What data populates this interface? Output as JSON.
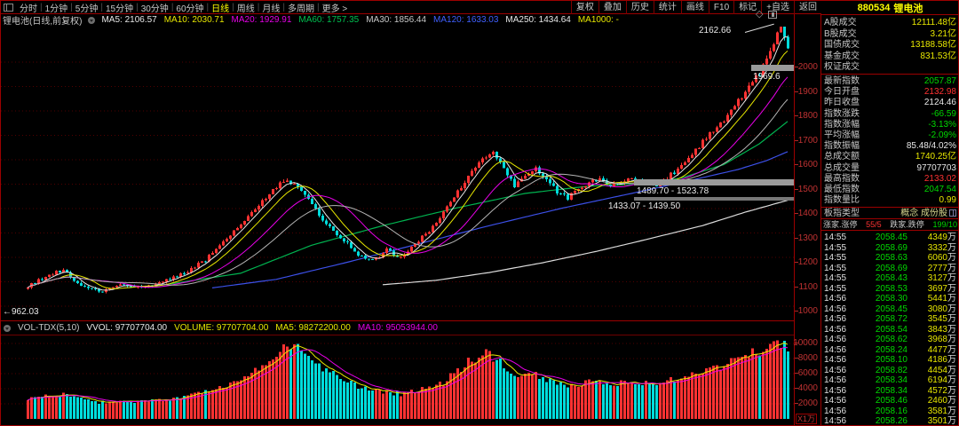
{
  "window": {
    "code": "880534",
    "name": "锂电池"
  },
  "toolbar": {
    "periods": [
      "分时",
      "1分钟",
      "5分钟",
      "15分钟",
      "30分钟",
      "60分钟",
      "日线",
      "周线",
      "月线",
      "多周期",
      "更多 >"
    ],
    "active_index": 6,
    "right_buttons": [
      "复权",
      "叠加",
      "历史",
      "统计",
      "画线",
      "F10",
      "标记",
      "+自选",
      "返回"
    ]
  },
  "ma_header": {
    "instrument": "锂电池(日线,前复权)",
    "items": [
      {
        "text": "MA5: 2106.57",
        "color": "#e8e8e8"
      },
      {
        "text": "MA10: 2030.71",
        "color": "#e8e800"
      },
      {
        "text": "MA20: 1929.91",
        "color": "#e800e8"
      },
      {
        "text": "MA60: 1757.35",
        "color": "#00c050"
      },
      {
        "text": "MA30: 1856.44",
        "color": "#c8c8c8"
      },
      {
        "text": "MA120: 1633.03",
        "color": "#4060ff"
      },
      {
        "text": "MA250: 1434.64",
        "color": "#e8e8e8"
      },
      {
        "text": "MA1000: -",
        "color": "#e8e800"
      }
    ]
  },
  "annotations": {
    "high": "2162.66",
    "zone_top": "1969.6",
    "zone_mid": "1489.70 - 1523.78",
    "zone_low": "1433.07 - 1439.50",
    "left_low": "←962.03"
  },
  "price_axis": {
    "ticks": [
      2000,
      1900,
      1800,
      1700,
      1600,
      1500,
      1400,
      1300,
      1200,
      1100,
      1000
    ]
  },
  "volume_axis": {
    "ticks": [
      10000,
      8000,
      6000,
      4000,
      2000
    ],
    "unit": "X1万"
  },
  "volume_header": {
    "items": [
      {
        "text": "VOL-TDX(5,10)",
        "color": "#c8c8c8"
      },
      {
        "text": "VVOL: 97707704.00",
        "color": "#e8e8e8"
      },
      {
        "text": "VOLUME: 97707704.00",
        "color": "#e8e800"
      },
      {
        "text": "MA5: 98272200.00",
        "color": "#e8e800"
      },
      {
        "text": "MA10: 95053944.00",
        "color": "#e800e8"
      }
    ]
  },
  "right_panel": {
    "summary_rows": [
      {
        "label": "A股成交",
        "value": "12111.48亿",
        "color": "#e8e800"
      },
      {
        "label": "B股成交",
        "value": "3.21亿",
        "color": "#e8e800"
      },
      {
        "label": "国债成交",
        "value": "13188.58亿",
        "color": "#e8e800"
      },
      {
        "label": "基金成交",
        "value": "831.53亿",
        "color": "#e8e800"
      },
      {
        "label": "权证成交",
        "value": "",
        "color": "#e8e800"
      }
    ],
    "index_rows": [
      {
        "label": "最新指数",
        "value": "2057.87",
        "color": "#00d800"
      },
      {
        "label": "今日开盘",
        "value": "2132.98",
        "color": "#ff3232"
      },
      {
        "label": "昨日收盘",
        "value": "2124.46",
        "color": "#e8e8e8"
      },
      {
        "label": "指数涨跌",
        "value": "-66.59",
        "color": "#00d800"
      },
      {
        "label": "指数涨幅",
        "value": "-3.13%",
        "color": "#00d800"
      },
      {
        "label": "平均涨幅",
        "value": "-2.09%",
        "color": "#00d800"
      },
      {
        "label": "指数振幅",
        "value": "85.48/4.02%",
        "color": "#e8e8e8"
      },
      {
        "label": "总成交额",
        "value": "1740.25亿",
        "color": "#e8e800"
      },
      {
        "label": "总成交量",
        "value": "97707703",
        "color": "#e8e8e8"
      },
      {
        "label": "最高指数",
        "value": "2133.02",
        "color": "#ff3232"
      },
      {
        "label": "最低指数",
        "value": "2047.54",
        "color": "#00d800"
      },
      {
        "label": "指数量比",
        "value": "0.99",
        "color": "#e8e800"
      }
    ],
    "type_row": {
      "label": "板指类型",
      "value": "概念 成份股"
    },
    "breadth_row": {
      "label_up": "涨家.涨停",
      "value_up": "55/5",
      "label_down": "跌家.跌停",
      "value_down": "199/10"
    },
    "tick_unit": "万",
    "ticks": [
      {
        "time": "14:55",
        "price": "2058.45",
        "vol": "4349"
      },
      {
        "time": "14:55",
        "price": "2058.69",
        "vol": "3332"
      },
      {
        "time": "14:55",
        "price": "2058.63",
        "vol": "6060"
      },
      {
        "time": "14:55",
        "price": "2058.69",
        "vol": "2777"
      },
      {
        "time": "14:55",
        "price": "2058.43",
        "vol": "3127"
      },
      {
        "time": "14:55",
        "price": "2058.53",
        "vol": "3697"
      },
      {
        "time": "14:56",
        "price": "2058.30",
        "vol": "5441"
      },
      {
        "time": "14:56",
        "price": "2058.45",
        "vol": "3080"
      },
      {
        "time": "14:56",
        "price": "2058.72",
        "vol": "3545"
      },
      {
        "time": "14:56",
        "price": "2058.54",
        "vol": "3843"
      },
      {
        "time": "14:56",
        "price": "2058.62",
        "vol": "3968"
      },
      {
        "time": "14:56",
        "price": "2058.24",
        "vol": "4477"
      },
      {
        "time": "14:56",
        "price": "2058.10",
        "vol": "4186"
      },
      {
        "time": "14:56",
        "price": "2058.82",
        "vol": "4454"
      },
      {
        "time": "14:56",
        "price": "2058.34",
        "vol": "6194"
      },
      {
        "time": "14:56",
        "price": "2058.34",
        "vol": "4572"
      },
      {
        "time": "14:56",
        "price": "2058.46",
        "vol": "2460"
      },
      {
        "time": "14:56",
        "price": "2058.16",
        "vol": "3581"
      },
      {
        "time": "14:56",
        "price": "2058.26",
        "vol": "3501"
      }
    ]
  },
  "chart_data": {
    "type": "candlestick+volume",
    "bars": 215,
    "price_range_visible": [
      949,
      2150
    ],
    "volume_unit_wan": true,
    "close_anchors": [
      [
        0,
        1080
      ],
      [
        6,
        1130
      ],
      [
        10,
        1150
      ],
      [
        14,
        1095
      ],
      [
        20,
        1060
      ],
      [
        26,
        1085
      ],
      [
        32,
        1075
      ],
      [
        38,
        1100
      ],
      [
        44,
        1135
      ],
      [
        50,
        1190
      ],
      [
        56,
        1280
      ],
      [
        62,
        1370
      ],
      [
        68,
        1460
      ],
      [
        72,
        1515
      ],
      [
        75,
        1500
      ],
      [
        78,
        1455
      ],
      [
        81,
        1395
      ],
      [
        85,
        1320
      ],
      [
        89,
        1270
      ],
      [
        93,
        1210
      ],
      [
        97,
        1185
      ],
      [
        101,
        1230
      ],
      [
        105,
        1195
      ],
      [
        109,
        1255
      ],
      [
        113,
        1310
      ],
      [
        117,
        1380
      ],
      [
        121,
        1470
      ],
      [
        125,
        1545
      ],
      [
        129,
        1615
      ],
      [
        131,
        1630
      ],
      [
        134,
        1565
      ],
      [
        137,
        1495
      ],
      [
        140,
        1540
      ],
      [
        143,
        1560
      ],
      [
        146,
        1525
      ],
      [
        149,
        1470
      ],
      [
        152,
        1445
      ],
      [
        155,
        1480
      ],
      [
        158,
        1510
      ],
      [
        161,
        1520
      ],
      [
        164,
        1490
      ],
      [
        167,
        1505
      ],
      [
        170,
        1525
      ],
      [
        173,
        1510
      ],
      [
        176,
        1490
      ],
      [
        179,
        1515
      ],
      [
        182,
        1550
      ],
      [
        185,
        1590
      ],
      [
        188,
        1640
      ],
      [
        191,
        1690
      ],
      [
        194,
        1730
      ],
      [
        197,
        1775
      ],
      [
        200,
        1840
      ],
      [
        203,
        1900
      ],
      [
        206,
        1955
      ],
      [
        208,
        2010
      ],
      [
        210,
        2070
      ],
      [
        212,
        2155
      ],
      [
        213,
        2100
      ],
      [
        214,
        2058
      ]
    ],
    "volume_anchors": [
      [
        0,
        2600
      ],
      [
        6,
        3100
      ],
      [
        10,
        3300
      ],
      [
        14,
        2700
      ],
      [
        20,
        2200
      ],
      [
        26,
        2400
      ],
      [
        32,
        2300
      ],
      [
        38,
        2500
      ],
      [
        44,
        2900
      ],
      [
        50,
        3600
      ],
      [
        56,
        4600
      ],
      [
        62,
        5800
      ],
      [
        68,
        7600
      ],
      [
        72,
        9400
      ],
      [
        75,
        9700
      ],
      [
        78,
        8900
      ],
      [
        81,
        7600
      ],
      [
        85,
        6200
      ],
      [
        89,
        5200
      ],
      [
        93,
        4300
      ],
      [
        97,
        3800
      ],
      [
        101,
        3500
      ],
      [
        105,
        3300
      ],
      [
        109,
        3700
      ],
      [
        113,
        4100
      ],
      [
        117,
        4800
      ],
      [
        121,
        6400
      ],
      [
        125,
        7900
      ],
      [
        129,
        8600
      ],
      [
        131,
        8300
      ],
      [
        134,
        7200
      ],
      [
        137,
        5900
      ],
      [
        140,
        6300
      ],
      [
        143,
        5900
      ],
      [
        146,
        5300
      ],
      [
        149,
        4700
      ],
      [
        152,
        4300
      ],
      [
        155,
        4600
      ],
      [
        158,
        4900
      ],
      [
        161,
        5000
      ],
      [
        164,
        4500
      ],
      [
        167,
        4700
      ],
      [
        170,
        5100
      ],
      [
        173,
        4800
      ],
      [
        176,
        4500
      ],
      [
        179,
        4900
      ],
      [
        182,
        5400
      ],
      [
        185,
        5900
      ],
      [
        188,
        6300
      ],
      [
        191,
        6700
      ],
      [
        194,
        7000
      ],
      [
        197,
        7400
      ],
      [
        200,
        8000
      ],
      [
        203,
        8700
      ],
      [
        206,
        9100
      ],
      [
        208,
        9400
      ],
      [
        210,
        9700
      ],
      [
        212,
        10000
      ],
      [
        213,
        9850
      ],
      [
        214,
        9770
      ]
    ],
    "ma60_anchors": [
      [
        36,
        1082
      ],
      [
        60,
        1135
      ],
      [
        80,
        1250
      ],
      [
        100,
        1330
      ],
      [
        120,
        1400
      ],
      [
        140,
        1462
      ],
      [
        158,
        1492
      ],
      [
        172,
        1500
      ],
      [
        184,
        1525
      ],
      [
        196,
        1580
      ],
      [
        206,
        1665
      ],
      [
        214,
        1757
      ]
    ],
    "ma120_anchors": [
      [
        52,
        1075
      ],
      [
        70,
        1110
      ],
      [
        90,
        1180
      ],
      [
        110,
        1255
      ],
      [
        130,
        1330
      ],
      [
        150,
        1400
      ],
      [
        170,
        1462
      ],
      [
        185,
        1510
      ],
      [
        200,
        1560
      ],
      [
        208,
        1596
      ],
      [
        214,
        1633
      ]
    ],
    "ma250_anchors": [
      [
        100,
        1088
      ],
      [
        115,
        1106
      ],
      [
        130,
        1138
      ],
      [
        145,
        1178
      ],
      [
        160,
        1224
      ],
      [
        175,
        1276
      ],
      [
        190,
        1330
      ],
      [
        202,
        1385
      ],
      [
        214,
        1434
      ]
    ],
    "colors": {
      "up": "#ff3232",
      "down": "#00dcdc",
      "grid": "#500000",
      "ma5": "#e8e8e8",
      "ma10": "#e8e800",
      "ma20": "#e800e8",
      "ma30": "#b4b4b4",
      "ma60": "#00b450",
      "ma120": "#3c50e8",
      "ma250": "#dcdcdc",
      "vol_ma5": "#e8e800",
      "vol_ma10": "#e800e8"
    }
  }
}
